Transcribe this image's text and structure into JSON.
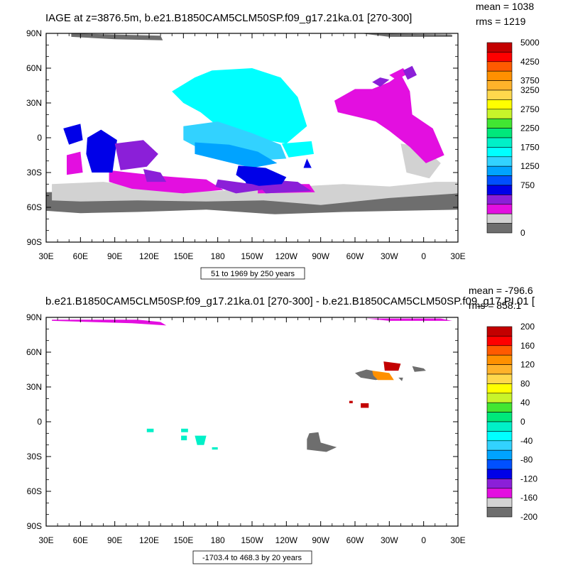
{
  "chart_data": [
    {
      "type": "map",
      "title": "IAGE at z=3876.5m, b.e21.B1850CAM5CLM50SP.f09_g17.21ka.01 [270-300]",
      "stats": {
        "mean": "mean = 1038",
        "rms": "rms = 1219"
      },
      "subtitle": "51 to 1969 by 250 years",
      "xticks": [
        "30E",
        "60E",
        "90E",
        "120E",
        "150E",
        "180",
        "150W",
        "120W",
        "90W",
        "60W",
        "30W",
        "0",
        "30E"
      ],
      "yticks": [
        "90N",
        "60N",
        "30N",
        "0",
        "30S",
        "60S",
        "90S"
      ],
      "xlim": [
        30,
        390
      ],
      "ylim": [
        -90,
        90
      ],
      "colorbar": {
        "labels": [
          "5000",
          "4250",
          "3750",
          "3250",
          "2750",
          "2250",
          "1750",
          "1250",
          "750",
          "0"
        ],
        "colors": [
          "#c30000",
          "#ff0000",
          "#ff5a00",
          "#ff9000",
          "#ffb22a",
          "#ffd84d",
          "#ffff00",
          "#c8f42a",
          "#42e632",
          "#00e87b",
          "#00f0c8",
          "#00ffff",
          "#32d2ff",
          "#00a3ff",
          "#0050ff",
          "#0000e8",
          "#8b1fd8",
          "#e30fe0",
          "#d2d2d2",
          "#6e6e6e"
        ]
      },
      "regions": [
        {
          "name": "arctic-dark",
          "color": "#6e6e6e"
        },
        {
          "name": "southern-dark",
          "color": "#6e6e6e"
        },
        {
          "name": "southern-light",
          "color": "#d2d2d2"
        },
        {
          "name": "indian-magenta",
          "color": "#e30fe0"
        },
        {
          "name": "indian-blue",
          "color": "#0000e8"
        },
        {
          "name": "indian-purple",
          "color": "#8b1fd8"
        },
        {
          "name": "pacific-cyan",
          "color": "#00ffff"
        },
        {
          "name": "pacific-light-blue",
          "color": "#32d2ff"
        },
        {
          "name": "pacific-mid-blue",
          "color": "#00a3ff"
        },
        {
          "name": "pacific-blue",
          "color": "#0000e8"
        },
        {
          "name": "pacific-purple",
          "color": "#8b1fd8"
        },
        {
          "name": "atlantic-magenta",
          "color": "#e30fe0"
        },
        {
          "name": "atlantic-purple",
          "color": "#8b1fd8"
        },
        {
          "name": "atlantic-light",
          "color": "#d2d2d2"
        }
      ]
    },
    {
      "type": "map",
      "title": "b.e21.B1850CAM5CLM50SP.f09_g17.21ka.01 [270-300] - b.e21.B1850CAM5CLM50SP.f09_g17.PI.01 [",
      "stats": {
        "mean": "mean = -796.6",
        "rms": "rms = 858.1"
      },
      "subtitle": "-1703.4 to 468.3 by 20 years",
      "xticks": [
        "30E",
        "60E",
        "90E",
        "120E",
        "150E",
        "180",
        "150W",
        "120W",
        "90W",
        "60W",
        "30W",
        "0",
        "30E"
      ],
      "yticks": [
        "90N",
        "60N",
        "30N",
        "0",
        "30S",
        "60S",
        "90S"
      ],
      "xlim": [
        30,
        390
      ],
      "ylim": [
        -90,
        90
      ],
      "colorbar": {
        "labels": [
          "200",
          "160",
          "120",
          "80",
          "40",
          "0",
          "-40",
          "-80",
          "-120",
          "-160",
          "-200"
        ],
        "colors": [
          "#c30000",
          "#ff0000",
          "#ff5a00",
          "#ff9000",
          "#ffb22a",
          "#ffd84d",
          "#ffff00",
          "#c8f42a",
          "#42e632",
          "#00e87b",
          "#00f0c8",
          "#00ffff",
          "#32d2ff",
          "#00a3ff",
          "#0050ff",
          "#0000e8",
          "#8b1fd8",
          "#e30fe0",
          "#d2d2d2",
          "#6e6e6e"
        ]
      },
      "regions": [
        {
          "name": "arctic-magenta",
          "color": "#e30fe0"
        },
        {
          "name": "atlantic-dark",
          "color": "#6e6e6e"
        },
        {
          "name": "atlantic-red",
          "color": "#c30000"
        },
        {
          "name": "atlantic-rainbow",
          "color": "#ff9000"
        },
        {
          "name": "pacific-patches",
          "color": "#00f0c8"
        },
        {
          "name": "equatorial-dark",
          "color": "#6e6e6e"
        }
      ]
    }
  ]
}
